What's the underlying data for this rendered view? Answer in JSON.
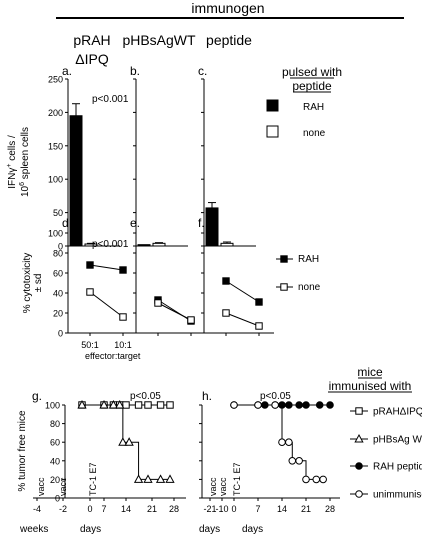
{
  "header": {
    "immunogen": "immunogen",
    "columns": [
      "pRAH",
      "ΔIPQ",
      "pHBsAgWT",
      "peptide"
    ]
  },
  "chart_data": [
    {
      "type": "bar",
      "panels": [
        "a.",
        "b.",
        "c."
      ],
      "ylabel_line1": "IFNγ",
      "ylabel_sup1": "+",
      "ylabel_line1b": " cells /",
      "ylabel_line2a": "10",
      "ylabel_sup2": "6",
      "ylabel_line2b": " spleen cells",
      "yticks": [
        0,
        50,
        100,
        150,
        200,
        250
      ],
      "ylim": [
        0,
        250
      ],
      "annotation": "p<0.001",
      "legend_title_1": "pulsed with",
      "legend_title_2": "peptide",
      "series": [
        {
          "name": "RAH",
          "color": "#000000",
          "values": [
            195,
            2,
            57
          ],
          "errors": [
            18,
            0,
            8
          ]
        },
        {
          "name": "none",
          "color": "#ffffff",
          "values": [
            3,
            4,
            4
          ],
          "errors": [
            1,
            1,
            2
          ]
        }
      ]
    },
    {
      "type": "line",
      "panels": [
        "d.",
        "e.",
        "f."
      ],
      "ylabel_a": "% cytotoxicity",
      "ylabel_b": "± sd",
      "yticks": [
        0,
        20,
        40,
        60,
        80,
        100
      ],
      "ylim": [
        0,
        100
      ],
      "xticks": [
        "50:1",
        "10:1"
      ],
      "xlabel": "effector:target",
      "annotation": "p<0.001",
      "series": [
        {
          "name": "RAH",
          "marker": "filled-square",
          "values": [
            [
              68,
              63
            ],
            [
              33,
              12
            ],
            [
              52,
              31
            ]
          ]
        },
        {
          "name": "none",
          "marker": "open-square",
          "values": [
            [
              41,
              16
            ],
            [
              30,
              13
            ],
            [
              20,
              7
            ]
          ]
        }
      ]
    },
    {
      "type": "line",
      "panels": [
        "g.",
        "h."
      ],
      "ylabel": "% tumor free mice",
      "yticks": [
        0,
        20,
        40,
        60,
        80,
        100
      ],
      "ylim": [
        0,
        100
      ],
      "annotation": "p<0.05",
      "g_xticks": [
        "-4",
        "-2",
        "0",
        "7",
        "14",
        "21",
        "28"
      ],
      "g_xunits": [
        "weeks",
        "days"
      ],
      "h_xticks": [
        "-21",
        "-10",
        "0",
        "7",
        "14",
        "21",
        "28"
      ],
      "h_xunits": [
        "days",
        "days"
      ],
      "events": [
        "vacc",
        "vacc",
        "TC-1 E7"
      ],
      "legend_title_1": "mice",
      "legend_title_2": "immunised with",
      "series": [
        {
          "name": "pRAHΔIPQ",
          "marker": "open-square",
          "panel": "g",
          "x": [
            0,
            7,
            10,
            12,
            14,
            18,
            21,
            25,
            28
          ],
          "y": [
            100,
            100,
            100,
            100,
            100,
            100,
            100,
            100,
            100
          ]
        },
        {
          "name": "pHBsAg WT",
          "marker": "open-triangle",
          "panel": "g",
          "x": [
            0,
            7,
            10,
            12,
            13,
            15,
            18,
            21,
            25,
            28
          ],
          "y": [
            100,
            100,
            100,
            100,
            60,
            60,
            20,
            20,
            20,
            20
          ]
        },
        {
          "name": "RAH peptide",
          "marker": "filled-circle",
          "panel": "h",
          "x": [
            0,
            7,
            9,
            12,
            14,
            16,
            19,
            21,
            25,
            28
          ],
          "y": [
            100,
            100,
            100,
            100,
            100,
            100,
            100,
            100,
            100,
            100
          ]
        },
        {
          "name": "unimmunised",
          "marker": "open-circle",
          "panel": "h",
          "x": [
            0,
            7,
            12,
            14,
            16,
            17,
            19,
            21,
            24,
            26
          ],
          "y": [
            100,
            100,
            100,
            60,
            60,
            40,
            40,
            20,
            20,
            20
          ]
        }
      ]
    }
  ]
}
